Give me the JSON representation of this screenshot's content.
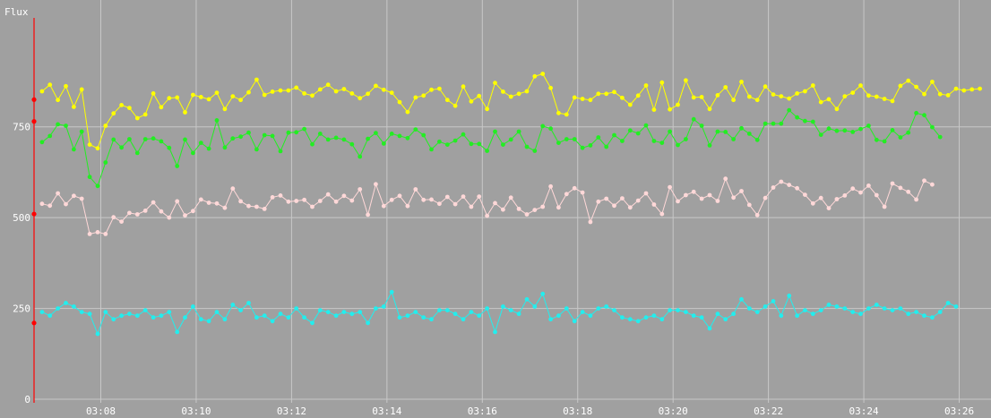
{
  "colors": {
    "background": "#a0a0a0",
    "grid": "#c8c8c8",
    "text": "#ffffff",
    "axis": "#ff0000",
    "markers": "#ff0000"
  },
  "chart_data": {
    "type": "line",
    "ylabel": "Flux",
    "ylim": [
      0,
      1050
    ],
    "yticks": [
      0,
      250,
      500,
      750
    ],
    "xlim": [
      "03:06:36",
      "03:26:40"
    ],
    "xticks": [
      "03:08",
      "03:10",
      "03:12",
      "03:14",
      "03:16",
      "03:18",
      "03:20",
      "03:22",
      "03:24",
      "03:26"
    ],
    "grid": true,
    "axis_markers": [
      825,
      765,
      510,
      210
    ],
    "x_start": "03:06:46",
    "x_step_seconds": 10,
    "series": [
      {
        "color": "#ffff00",
        "values": [
          848,
          866,
          824,
          862,
          805,
          853,
          701,
          691,
          753,
          787,
          810,
          802,
          774,
          784,
          842,
          804,
          829,
          831,
          790,
          838,
          832,
          826,
          844,
          799,
          834,
          824,
          845,
          880,
          838,
          847,
          850,
          850,
          858,
          842,
          836,
          853,
          866,
          848,
          854,
          842,
          829,
          841,
          863,
          852,
          844,
          818,
          791,
          831,
          836,
          852,
          855,
          824,
          808,
          861,
          820,
          835,
          799,
          871,
          847,
          833,
          841,
          848,
          889,
          896,
          857,
          788,
          784,
          831,
          827,
          824,
          841,
          841,
          846,
          830,
          811,
          836,
          864,
          797,
          872,
          798,
          811,
          878,
          831,
          832,
          799,
          837,
          859,
          824,
          874,
          833,
          824,
          861,
          839,
          834,
          828,
          842,
          848,
          864,
          818,
          826,
          799,
          834,
          844,
          864,
          836,
          833,
          827,
          821,
          863,
          877,
          860,
          840,
          874,
          840,
          837,
          855,
          850,
          853,
          855
        ]
      },
      {
        "color": "#22ee22",
        "values": [
          708,
          725,
          757,
          753,
          688,
          737,
          612,
          587,
          652,
          715,
          693,
          716,
          678,
          716,
          718,
          710,
          692,
          642,
          715,
          678,
          706,
          690,
          768,
          693,
          718,
          723,
          734,
          688,
          727,
          725,
          683,
          734,
          735,
          744,
          702,
          731,
          715,
          720,
          715,
          702,
          668,
          717,
          733,
          704,
          731,
          725,
          719,
          743,
          727,
          688,
          709,
          701,
          712,
          729,
          703,
          703,
          684,
          737,
          701,
          715,
          737,
          695,
          684,
          752,
          745,
          706,
          716,
          716,
          692,
          699,
          721,
          695,
          727,
          711,
          740,
          732,
          754,
          711,
          706,
          737,
          700,
          716,
          771,
          753,
          699,
          737,
          736,
          716,
          746,
          731,
          714,
          759,
          759,
          759,
          796,
          776,
          766,
          764,
          728,
          745,
          739,
          740,
          736,
          744,
          753,
          714,
          710,
          741,
          721,
          734,
          788,
          782,
          749,
          722
        ]
      },
      {
        "color": "#ffd8d8",
        "values": [
          538,
          533,
          567,
          537,
          560,
          552,
          455,
          460,
          455,
          501,
          489,
          513,
          509,
          519,
          542,
          517,
          500,
          545,
          506,
          518,
          550,
          541,
          539,
          527,
          580,
          545,
          532,
          530,
          524,
          556,
          561,
          544,
          546,
          549,
          530,
          546,
          564,
          544,
          560,
          547,
          578,
          508,
          592,
          532,
          549,
          560,
          532,
          578,
          549,
          550,
          538,
          557,
          537,
          558,
          530,
          558,
          505,
          540,
          522,
          555,
          524,
          509,
          521,
          530,
          586,
          528,
          565,
          581,
          569,
          488,
          544,
          552,
          533,
          553,
          528,
          547,
          567,
          536,
          510,
          584,
          545,
          562,
          571,
          552,
          562,
          546,
          607,
          555,
          573,
          535,
          507,
          554,
          583,
          599,
          590,
          581,
          563,
          539,
          554,
          526,
          551,
          561,
          580,
          569,
          588,
          562,
          530,
          594,
          582,
          571,
          550,
          602,
          591
        ]
      },
      {
        "color": "#22eeee",
        "values": [
          240,
          230,
          250,
          265,
          255,
          240,
          235,
          180,
          240,
          220,
          230,
          235,
          230,
          245,
          225,
          230,
          240,
          185,
          225,
          255,
          220,
          215,
          240,
          220,
          260,
          245,
          265,
          225,
          230,
          215,
          235,
          225,
          250,
          225,
          210,
          245,
          240,
          230,
          240,
          235,
          240,
          210,
          250,
          255,
          295,
          225,
          230,
          240,
          225,
          220,
          245,
          245,
          235,
          220,
          240,
          230,
          250,
          185,
          255,
          245,
          235,
          275,
          255,
          290,
          220,
          230,
          250,
          215,
          240,
          230,
          250,
          255,
          245,
          225,
          220,
          215,
          225,
          230,
          220,
          245,
          245,
          240,
          230,
          225,
          195,
          235,
          220,
          235,
          275,
          250,
          240,
          255,
          270,
          230,
          285,
          230,
          245,
          235,
          245,
          260,
          255,
          250,
          240,
          235,
          250,
          260,
          250,
          245,
          250,
          235,
          240,
          230,
          225,
          240,
          265,
          255
        ]
      }
    ]
  }
}
